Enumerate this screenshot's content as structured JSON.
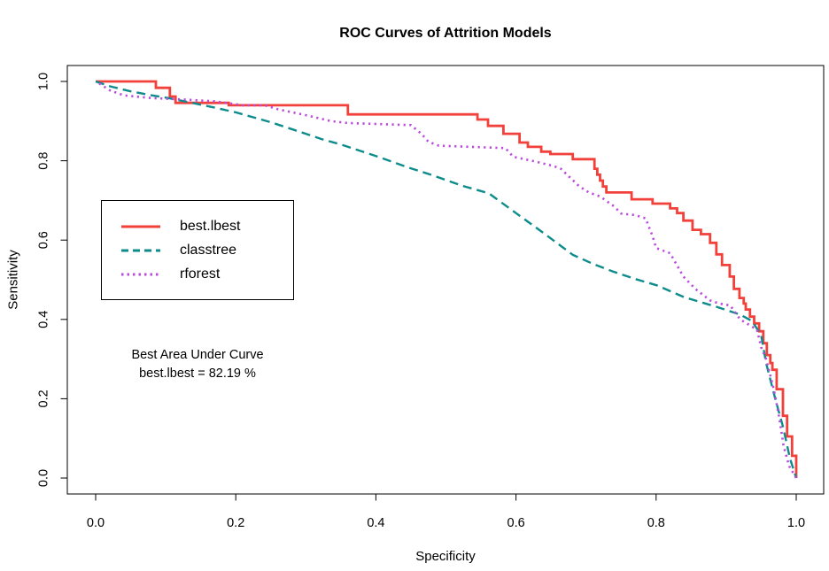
{
  "chart_data": {
    "type": "line",
    "title": "ROC Curves of Attrition Models",
    "xlabel": "Specificity",
    "ylabel": "Sensitivity",
    "xlim": [
      0.0,
      1.0
    ],
    "ylim": [
      0.0,
      1.0
    ],
    "grid": false,
    "x_ticks": [
      "0.0",
      "0.2",
      "0.4",
      "0.6",
      "0.8",
      "1.0"
    ],
    "y_ticks": [
      "0.0",
      "0.2",
      "0.4",
      "0.6",
      "0.8",
      "1.0"
    ],
    "frame_color": "#000000",
    "background_color": "#ffffff",
    "legend": {
      "position": "upper-left-inside",
      "border": true
    },
    "annotation": {
      "line1": "Best Area Under Curve",
      "line2": "best.lbest = 82.19 %"
    },
    "series": [
      {
        "name": "best.lbest",
        "color": "#f1413a",
        "style": "solid",
        "interpolation": "step-after",
        "points": [
          [
            0.0,
            1.0
          ],
          [
            0.082,
            1.0
          ],
          [
            0.086,
            0.984
          ],
          [
            0.103,
            0.984
          ],
          [
            0.106,
            0.962
          ],
          [
            0.114,
            0.946
          ],
          [
            0.186,
            0.946
          ],
          [
            0.19,
            0.94
          ],
          [
            0.355,
            0.94
          ],
          [
            0.36,
            0.917
          ],
          [
            0.539,
            0.917
          ],
          [
            0.545,
            0.904
          ],
          [
            0.56,
            0.888
          ],
          [
            0.582,
            0.868
          ],
          [
            0.605,
            0.846
          ],
          [
            0.617,
            0.835
          ],
          [
            0.636,
            0.823
          ],
          [
            0.649,
            0.817
          ],
          [
            0.681,
            0.804
          ],
          [
            0.708,
            0.804
          ],
          [
            0.712,
            0.78
          ],
          [
            0.716,
            0.765
          ],
          [
            0.72,
            0.75
          ],
          [
            0.724,
            0.735
          ],
          [
            0.729,
            0.72
          ],
          [
            0.765,
            0.703
          ],
          [
            0.795,
            0.692
          ],
          [
            0.82,
            0.68
          ],
          [
            0.83,
            0.668
          ],
          [
            0.839,
            0.649
          ],
          [
            0.852,
            0.626
          ],
          [
            0.864,
            0.615
          ],
          [
            0.877,
            0.593
          ],
          [
            0.886,
            0.564
          ],
          [
            0.894,
            0.537
          ],
          [
            0.905,
            0.508
          ],
          [
            0.911,
            0.477
          ],
          [
            0.919,
            0.454
          ],
          [
            0.925,
            0.44
          ],
          [
            0.928,
            0.425
          ],
          [
            0.934,
            0.407
          ],
          [
            0.94,
            0.39
          ],
          [
            0.947,
            0.37
          ],
          [
            0.953,
            0.34
          ],
          [
            0.958,
            0.31
          ],
          [
            0.963,
            0.29
          ],
          [
            0.966,
            0.273
          ],
          [
            0.972,
            0.224
          ],
          [
            0.981,
            0.157
          ],
          [
            0.987,
            0.105
          ],
          [
            0.994,
            0.056
          ],
          [
            1.0,
            0.0
          ]
        ]
      },
      {
        "name": "classtree",
        "color": "#0e8c8c",
        "style": "dashed",
        "interpolation": "linear",
        "points": [
          [
            0.0,
            1.0
          ],
          [
            0.02,
            0.988
          ],
          [
            0.05,
            0.975
          ],
          [
            0.08,
            0.965
          ],
          [
            0.104,
            0.958
          ],
          [
            0.14,
            0.945
          ],
          [
            0.17,
            0.934
          ],
          [
            0.2,
            0.922
          ],
          [
            0.25,
            0.897
          ],
          [
            0.3,
            0.868
          ],
          [
            0.322,
            0.855
          ],
          [
            0.35,
            0.841
          ],
          [
            0.4,
            0.812
          ],
          [
            0.446,
            0.783
          ],
          [
            0.48,
            0.764
          ],
          [
            0.523,
            0.737
          ],
          [
            0.561,
            0.718
          ],
          [
            0.6,
            0.668
          ],
          [
            0.64,
            0.617
          ],
          [
            0.681,
            0.563
          ],
          [
            0.71,
            0.54
          ],
          [
            0.738,
            0.521
          ],
          [
            0.77,
            0.502
          ],
          [
            0.801,
            0.486
          ],
          [
            0.84,
            0.456
          ],
          [
            0.886,
            0.432
          ],
          [
            0.92,
            0.412
          ],
          [
            0.937,
            0.396
          ],
          [
            0.95,
            0.36
          ],
          [
            0.957,
            0.29
          ],
          [
            0.97,
            0.2
          ],
          [
            0.981,
            0.13
          ],
          [
            0.991,
            0.05
          ],
          [
            1.0,
            0.0
          ]
        ]
      },
      {
        "name": "rforest",
        "color": "#bb4ade",
        "style": "dotted",
        "interpolation": "linear",
        "points": [
          [
            0.005,
            0.995
          ],
          [
            0.02,
            0.978
          ],
          [
            0.04,
            0.965
          ],
          [
            0.08,
            0.958
          ],
          [
            0.12,
            0.955
          ],
          [
            0.17,
            0.95
          ],
          [
            0.21,
            0.94
          ],
          [
            0.241,
            0.94
          ],
          [
            0.26,
            0.93
          ],
          [
            0.3,
            0.915
          ],
          [
            0.336,
            0.9
          ],
          [
            0.36,
            0.895
          ],
          [
            0.45,
            0.89
          ],
          [
            0.465,
            0.868
          ],
          [
            0.475,
            0.848
          ],
          [
            0.49,
            0.838
          ],
          [
            0.585,
            0.832
          ],
          [
            0.596,
            0.81
          ],
          [
            0.623,
            0.8
          ],
          [
            0.653,
            0.787
          ],
          [
            0.664,
            0.78
          ],
          [
            0.69,
            0.736
          ],
          [
            0.704,
            0.72
          ],
          [
            0.72,
            0.71
          ],
          [
            0.74,
            0.685
          ],
          [
            0.75,
            0.667
          ],
          [
            0.77,
            0.663
          ],
          [
            0.785,
            0.655
          ],
          [
            0.795,
            0.61
          ],
          [
            0.8,
            0.58
          ],
          [
            0.82,
            0.567
          ],
          [
            0.839,
            0.508
          ],
          [
            0.856,
            0.477
          ],
          [
            0.877,
            0.448
          ],
          [
            0.89,
            0.44
          ],
          [
            0.906,
            0.435
          ],
          [
            0.92,
            0.4
          ],
          [
            0.944,
            0.374
          ],
          [
            0.95,
            0.33
          ],
          [
            0.957,
            0.3
          ],
          [
            0.968,
            0.224
          ],
          [
            0.976,
            0.15
          ],
          [
            0.982,
            0.08
          ],
          [
            0.99,
            0.03
          ],
          [
            1.0,
            0.0
          ]
        ]
      }
    ]
  }
}
